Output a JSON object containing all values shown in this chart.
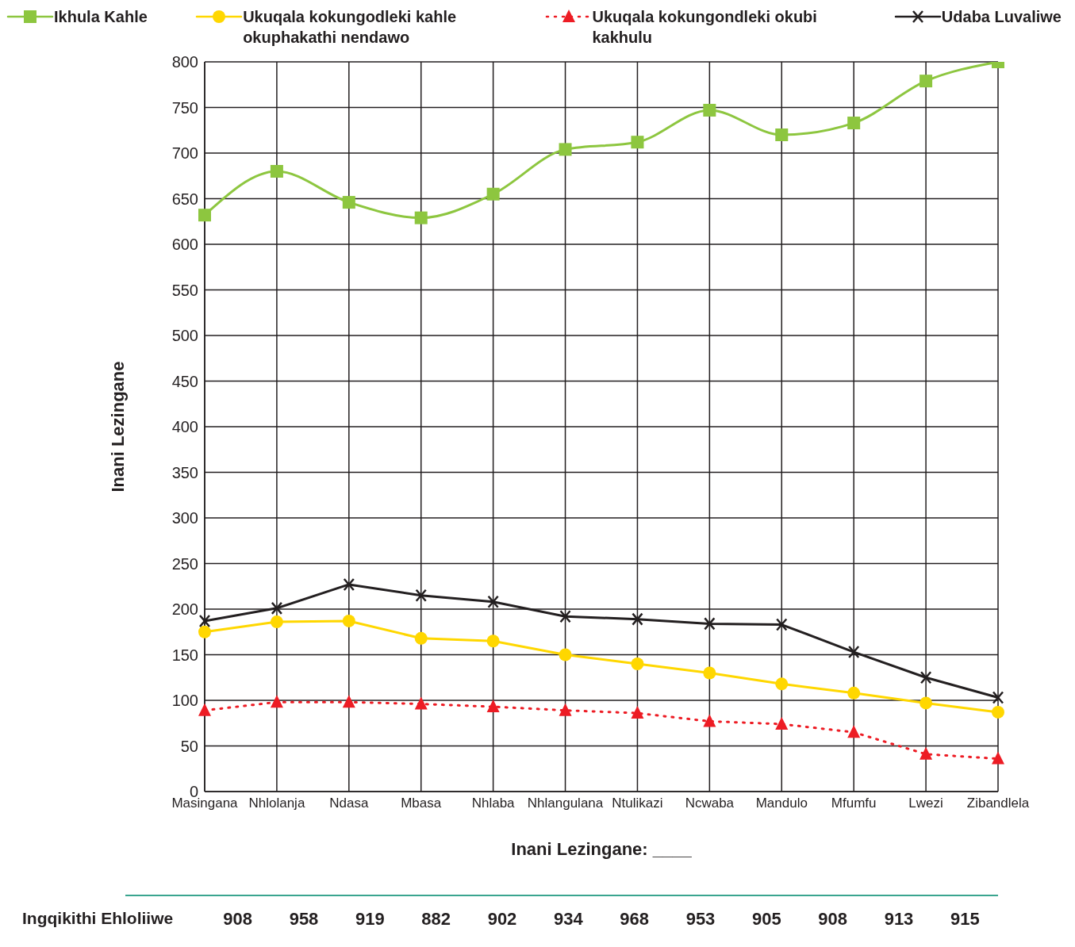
{
  "chart_data": {
    "type": "line",
    "xlabel": "Inani Lezingane: ____",
    "ylabel": "Inani Lezingane",
    "categories": [
      "Masingana",
      "Nhlolanja",
      "Ndasa",
      "Mbasa",
      "Nhlaba",
      "Nhlangulana",
      "Ntulikazi",
      "Ncwaba",
      "Mandulo",
      "Mfumfu",
      "Lwezi",
      "Zibandlela"
    ],
    "series": [
      {
        "name": "Ikhula Kahle",
        "color": "#8dc63f",
        "marker": "square",
        "line_style": "solid",
        "values": [
          632,
          680,
          646,
          629,
          655,
          704,
          712,
          747,
          720,
          733,
          779,
          800
        ]
      },
      {
        "name": "Ukuqala kokungodleki kahle okuphakathi nendawo",
        "color": "#ffd700",
        "marker": "circle",
        "line_style": "solid",
        "values": [
          175,
          186,
          187,
          168,
          165,
          150,
          140,
          130,
          118,
          108,
          97,
          87
        ]
      },
      {
        "name": "Ukuqala kokungondleki okubi kakhulu",
        "color": "#ed1c24",
        "marker": "triangle",
        "line_style": "dotted",
        "values": [
          89,
          98,
          98,
          96,
          93,
          89,
          86,
          77,
          74,
          65,
          41,
          36
        ]
      },
      {
        "name": "Udaba Luvaliwe",
        "color": "#231f20",
        "marker": "cross",
        "line_style": "solid",
        "values": [
          187,
          201,
          227,
          215,
          208,
          192,
          189,
          184,
          183,
          153,
          125,
          103
        ]
      }
    ],
    "ylim": [
      0,
      800
    ],
    "yticks": [
      0,
      50,
      100,
      150,
      200,
      250,
      300,
      350,
      400,
      450,
      500,
      550,
      600,
      650,
      700,
      750,
      800
    ],
    "grid": true,
    "legend": "top",
    "annotations": [
      "Ingqikithi Ehloliiwe",
      "908",
      "958",
      "919",
      "882",
      "902",
      "934",
      "968",
      "953",
      "905",
      "908",
      "913",
      "915"
    ]
  }
}
